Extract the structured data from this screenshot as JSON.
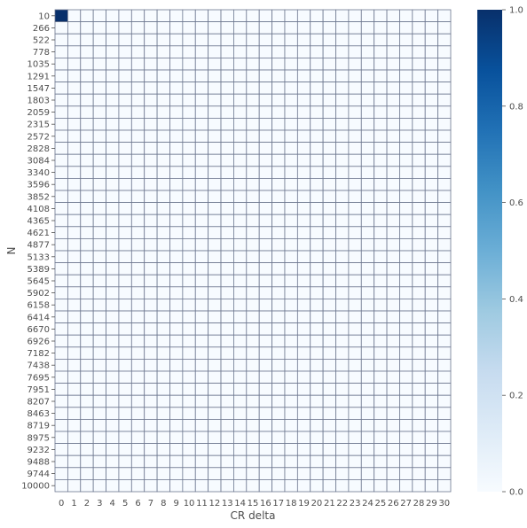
{
  "chart_data": {
    "type": "heatmap",
    "xlabel": "CR delta",
    "ylabel": "N",
    "x_categories": [
      "0",
      "1",
      "2",
      "3",
      "4",
      "5",
      "6",
      "7",
      "8",
      "9",
      "10",
      "11",
      "12",
      "13",
      "14",
      "15",
      "16",
      "17",
      "18",
      "19",
      "20",
      "21",
      "22",
      "23",
      "24",
      "25",
      "26",
      "27",
      "28",
      "29",
      "30"
    ],
    "y_categories": [
      "10",
      "266",
      "522",
      "778",
      "1035",
      "1291",
      "1547",
      "1803",
      "2059",
      "2315",
      "2572",
      "2828",
      "3084",
      "3340",
      "3596",
      "3852",
      "4108",
      "4365",
      "4621",
      "4877",
      "5133",
      "5389",
      "5645",
      "5902",
      "6158",
      "6414",
      "6670",
      "6926",
      "7182",
      "7438",
      "7695",
      "7951",
      "8207",
      "8463",
      "8719",
      "8975",
      "9232",
      "9488",
      "9744",
      "10000"
    ],
    "nonzero_cells": [
      {
        "row": 0,
        "col": 0,
        "value": 1.0
      }
    ],
    "default_value": 0.0,
    "vmin": 0.0,
    "vmax": 1.0,
    "colorscale": "Blues",
    "colorbar_ticks": [
      "0.0",
      "0.2",
      "0.4",
      "0.6",
      "0.8",
      "1.0"
    ],
    "colors": {
      "low": "#f7fbff",
      "high": "#08306b",
      "cell_border": "#6e7890"
    }
  }
}
